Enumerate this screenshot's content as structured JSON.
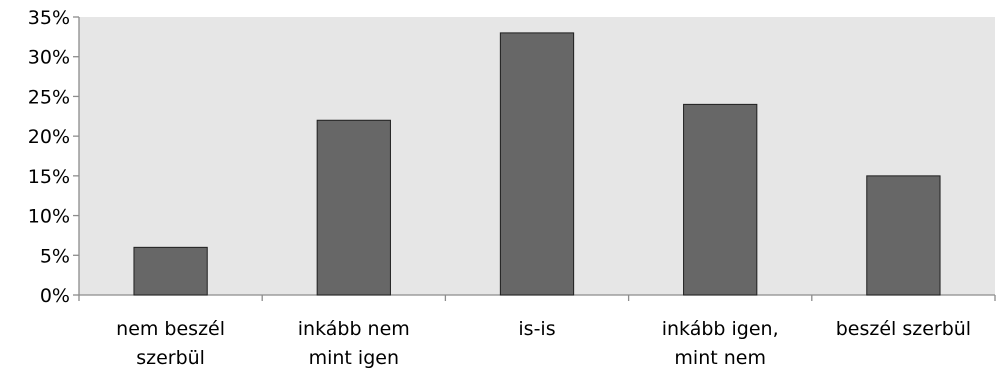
{
  "chart_data": {
    "type": "bar",
    "categories": [
      [
        "nem beszél",
        "szerbül"
      ],
      [
        "inkább nem",
        "mint igen"
      ],
      [
        "is-is"
      ],
      [
        "inkább igen,",
        "mint nem"
      ],
      [
        "beszél szerbül"
      ]
    ],
    "values": [
      6,
      22,
      33,
      24,
      15
    ],
    "value_unit": "%",
    "ylim": [
      0,
      35
    ],
    "yticks": [
      "0%",
      "5%",
      "10%",
      "15%",
      "20%",
      "25%",
      "30%",
      "35%"
    ],
    "grid": false,
    "legend": "none",
    "title": "",
    "xlabel": "",
    "ylabel": "",
    "colors": {
      "plot_background": "#e6e6e6",
      "bar_fill": "#676767",
      "bar_stroke": "#1f1f1f",
      "axis": "#8c8c8c"
    }
  }
}
